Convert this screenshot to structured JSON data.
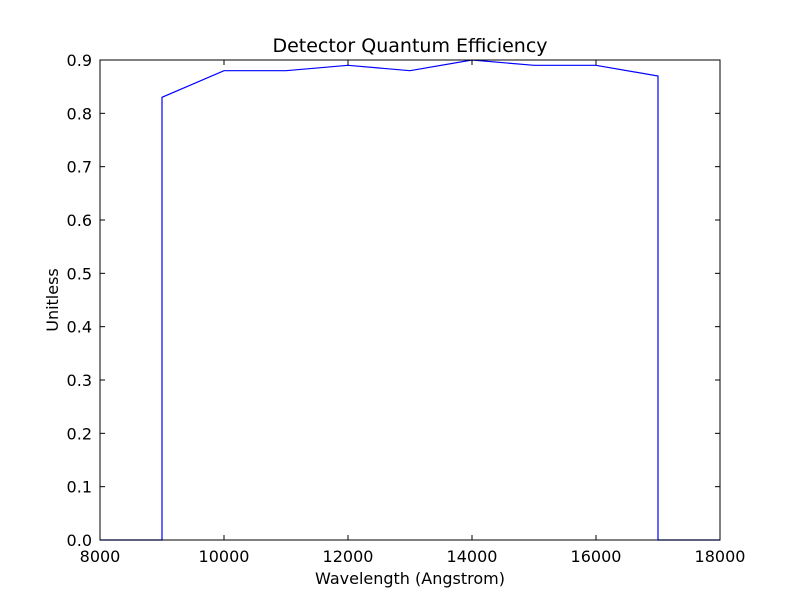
{
  "chart_data": {
    "type": "line",
    "title": "Detector Quantum Efficiency",
    "xlabel": "Wavelength (Angstrom)",
    "ylabel": "Unitless",
    "xlim": [
      8000,
      18000
    ],
    "ylim": [
      0.0,
      0.9
    ],
    "xticks": [
      "8000",
      "10000",
      "12000",
      "14000",
      "16000",
      "18000"
    ],
    "yticks": [
      "0.0",
      "0.1",
      "0.2",
      "0.3",
      "0.4",
      "0.5",
      "0.6",
      "0.7",
      "0.8",
      "0.9"
    ],
    "grid": false,
    "legend": "none",
    "series": [
      {
        "color": "#0000ff",
        "x": [
          8000,
          9000,
          9000,
          10000,
          11000,
          12000,
          13000,
          14000,
          15000,
          16000,
          17000,
          17000,
          18000
        ],
        "y": [
          0.0,
          0.0,
          0.83,
          0.88,
          0.88,
          0.89,
          0.88,
          0.9,
          0.89,
          0.89,
          0.87,
          0.0,
          0.0
        ]
      }
    ]
  }
}
